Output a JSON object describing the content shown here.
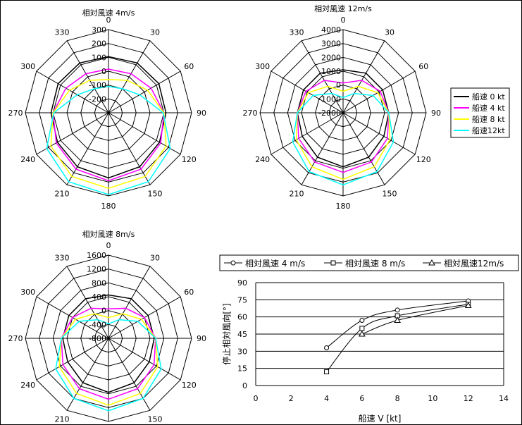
{
  "legend_polar": {
    "entries": [
      {
        "name": "船速 0 kt",
        "color": "#000000"
      },
      {
        "name": "船速 4 kt",
        "color": "#ff00ff"
      },
      {
        "name": "船速 8 kt",
        "color": "#ffff00"
      },
      {
        "name": "船速12kt",
        "color": "#00ffff"
      }
    ]
  },
  "chart_data": [
    {
      "type": "polar",
      "title": "相対風速 4m/s",
      "angles": [
        0,
        30,
        60,
        90,
        120,
        150,
        180,
        210,
        240,
        270,
        300,
        330
      ],
      "angle_labels": [
        "0",
        "30",
        "60",
        "90",
        "120",
        "150",
        "180",
        "210",
        "240",
        "270",
        "300",
        "330"
      ],
      "rlim": [
        -300,
        300
      ],
      "r_ticks": [
        300,
        200,
        100,
        0,
        -100,
        -200
      ],
      "r_tick_labels": [
        "300",
        "200",
        "100",
        "0",
        "-100",
        "-200"
      ],
      "series": [
        {
          "name": "船速 0 kt",
          "color": "#000000",
          "values": [
            105,
            115,
            120,
            115,
            125,
            150,
            170,
            150,
            125,
            115,
            120,
            115
          ]
        },
        {
          "name": "船速 4 kt",
          "color": "#ff00ff",
          "values": [
            15,
            25,
            55,
            100,
            135,
            170,
            190,
            170,
            135,
            100,
            55,
            25
          ]
        },
        {
          "name": "船速 8 kt",
          "color": "#ffff00",
          "values": [
            -60,
            -30,
            25,
            100,
            180,
            230,
            245,
            230,
            180,
            100,
            25,
            -30
          ]
        },
        {
          "name": "船速12kt",
          "color": "#00ffff",
          "values": [
            -110,
            -100,
            -40,
            95,
            215,
            275,
            290,
            275,
            215,
            95,
            -40,
            -100
          ]
        }
      ]
    },
    {
      "type": "polar",
      "title": "相対風速 12m/s",
      "angles": [
        0,
        30,
        60,
        90,
        120,
        150,
        180,
        210,
        240,
        270,
        300,
        330
      ],
      "angle_labels": [
        "0",
        "30",
        "60",
        "90",
        "120",
        "150",
        "180",
        "210",
        "240",
        "270",
        "300",
        "330"
      ],
      "rlim": [
        -2000,
        4000
      ],
      "r_ticks": [
        4000,
        3000,
        2000,
        1000,
        0,
        -1000,
        -2000
      ],
      "r_tick_labels": [
        "4000",
        "3000",
        "2000",
        "1000",
        "0",
        "-1000",
        "-2000"
      ],
      "series": [
        {
          "name": "船速 0 kt",
          "color": "#000000",
          "values": [
            1100,
            1300,
            1300,
            1300,
            1400,
            1700,
            1900,
            1700,
            1400,
            1300,
            1300,
            1300
          ]
        },
        {
          "name": "船速 4 kt",
          "color": "#ff00ff",
          "values": [
            150,
            700,
            1100,
            1300,
            1700,
            2100,
            2300,
            2100,
            1700,
            1300,
            1100,
            700
          ]
        },
        {
          "name": "船速 8 kt",
          "color": "#ffff00",
          "values": [
            -450,
            200,
            900,
            1300,
            1900,
            2500,
            2800,
            2500,
            1900,
            1300,
            900,
            200
          ]
        },
        {
          "name": "船速12kt",
          "color": "#00ffff",
          "values": [
            -900,
            -400,
            500,
            1300,
            2200,
            2900,
            3200,
            2900,
            2200,
            1300,
            500,
            -400
          ]
        }
      ]
    },
    {
      "type": "polar",
      "title": "相対風速 8m/s",
      "angles": [
        0,
        30,
        60,
        90,
        120,
        150,
        180,
        210,
        240,
        270,
        300,
        330
      ],
      "angle_labels": [
        "0",
        "30",
        "60",
        "90",
        "120",
        "150",
        "180",
        "210",
        "240",
        "270",
        "300",
        "330"
      ],
      "rlim": [
        -800,
        1600
      ],
      "r_ticks": [
        1600,
        1200,
        800,
        400,
        0,
        -400,
        -800
      ],
      "r_tick_labels": [
        "1600",
        "1200",
        "800",
        "400",
        "0",
        "-400",
        "-800"
      ],
      "series": [
        {
          "name": "船速 0 kt",
          "color": "#000000",
          "values": [
            450,
            520,
            520,
            520,
            560,
            680,
            760,
            680,
            560,
            520,
            520,
            520
          ]
        },
        {
          "name": "船速 4 kt",
          "color": "#ff00ff",
          "values": [
            50,
            200,
            400,
            560,
            720,
            880,
            960,
            880,
            720,
            560,
            400,
            200
          ]
        },
        {
          "name": "船速 8 kt",
          "color": "#ffff00",
          "values": [
            -200,
            20,
            300,
            560,
            840,
            1040,
            1130,
            1040,
            840,
            560,
            300,
            20
          ]
        },
        {
          "name": "船速12kt",
          "color": "#00ffff",
          "values": [
            -380,
            -180,
            180,
            560,
            960,
            1200,
            1290,
            1200,
            960,
            560,
            180,
            -180
          ]
        }
      ]
    },
    {
      "type": "line",
      "xlabel": "船速 V [kt]",
      "ylabel": "停止相対風向[°]",
      "xlim": [
        0,
        14
      ],
      "ylim": [
        0,
        90
      ],
      "x_ticks": [
        0,
        2,
        4,
        6,
        8,
        10,
        12,
        14
      ],
      "x_tick_labels": [
        "0",
        "2",
        "4",
        "6",
        "8",
        "10",
        "12",
        "14"
      ],
      "y_ticks": [
        0,
        15,
        30,
        45,
        60,
        75,
        90
      ],
      "y_tick_labels": [
        "0",
        "15",
        "30",
        "45",
        "60",
        "75",
        "90"
      ],
      "grid": "horizontal",
      "legend_placement": "top",
      "series": [
        {
          "name": "相対風速 4 m/s",
          "marker": "circle",
          "x": [
            4,
            6,
            8,
            12
          ],
          "y": [
            33,
            57,
            66,
            74
          ]
        },
        {
          "name": "相対風速 8 m/s",
          "marker": "square",
          "x": [
            4,
            6,
            8,
            12
          ],
          "y": [
            12,
            50,
            61,
            71
          ]
        },
        {
          "name": "相対風速12m/s",
          "marker": "triangle",
          "x": [
            6,
            8,
            12
          ],
          "y": [
            45,
            57,
            70
          ]
        }
      ]
    }
  ]
}
